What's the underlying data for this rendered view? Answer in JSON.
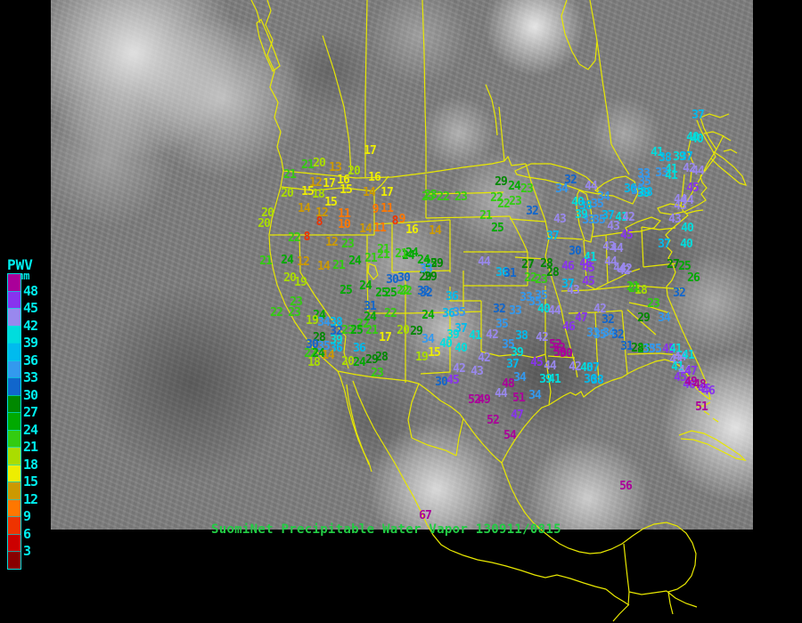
{
  "caption": {
    "text": "SuomiNet Precipitable Water Vapor 130911/0815",
    "color": "#22cc44"
  },
  "legend": {
    "title": "PWV",
    "unit": "mm",
    "text_color": "#00eeee",
    "below_scale_color": "#880000",
    "entries": [
      [
        48,
        "#aa0099"
      ],
      [
        45,
        "#8833ee"
      ],
      [
        42,
        "#9988ee"
      ],
      [
        39,
        "#00dddd"
      ],
      [
        36,
        "#00bbee"
      ],
      [
        33,
        "#3399ee"
      ],
      [
        30,
        "#1166cc"
      ],
      [
        27,
        "#008800"
      ],
      [
        24,
        "#00aa00"
      ],
      [
        21,
        "#33cc11"
      ],
      [
        18,
        "#aadd00"
      ],
      [
        15,
        "#eeee00"
      ],
      [
        12,
        "#cc9900"
      ],
      [
        9,
        "#ff7700"
      ],
      [
        6,
        "#ee3300"
      ],
      [
        3,
        "#cc0000"
      ]
    ]
  },
  "map": {
    "border_color": "#e8e800",
    "borders": [
      "M300,0 L304,12 L298,28 L306,45 L300,62 L308,80 L303,98 L312,115 L308,132 L315,148 L311,165 L316,180 L318,192 L315,210 L310,228 L305,246 L302,264 L303,282 L306,300 L311,320 L320,342 L331,362 L342,378 L352,392 L362,402 L371,410 L379,417",
      "M379,417 L382,424 L387,440 L391,458 L396,476 L402,494 L408,508 L414,520 L417,530",
      "M414,522 L407,505 L400,486 L395,466 L391,448 L389,432",
      "M396,428 L402,444 L410,462 L420,482 L432,502 L444,522 L455,542 L464,558 L472,574 L479,589 L486,601 L495,612 L505,618 L520,624 L536,629 L552,632 L568,636 L585,641 L600,646 L612,649 L625,646 L640,650 L655,655 L668,659 L680,662",
      "M318,192 L360,196 L400,200 L440,199 L480,194 L520,188 L552,184 L566,181 L570,176 L574,186 L590,184",
      "M293,22 L300,38 L308,58 L314,74 L306,80 L298,62 L291,42 L288,26 Z",
      "M282,0 L288,12 L292,26",
      "M362,40 L375,80 L386,120 L392,160 L394,196",
      "M412,0 L411,50 L410,110 L410,170 L410,199",
      "M474,0 L476,60 L477,120 L478,160 L478,193",
      "M560,120 L563,150 L566,181",
      "M545,95 L552,112 L556,132 L558,152",
      "M636,0 L630,18 L634,38 L642,58 L650,72 L660,78 L668,68 L670,46 L666,22 L662,0",
      "M670,46 L676,90 L682,130 L686,162 L696,180 L706,196",
      "M578,192 L596,184 L618,184 L640,190 L658,199 L670,210 L672,218 L655,215 L635,208 L612,202 L592,199 L580,196 Z",
      "M650,214 L658,218 L663,236 L666,256 L663,272 L656,270 L650,252 L647,232 L648,218 Z",
      "M668,214 L678,206 L690,200 L702,198 L712,204 L716,217 L710,229 L700,225 L688,220 L676,219 Z",
      "M702,256 L716,249 L731,244 L741,248 L734,256 L718,260 L705,261 Z",
      "M738,234 L752,229 L764,231 L767,238 L754,241 L741,239 Z",
      "M316,210 L352,214 L385,211 L420,215",
      "M303,264 L340,264 L380,264 L420,264",
      "M420,215 L420,264",
      "M336,264 L337,306 L352,330 L370,356 L388,378 L386,396 L391,414",
      "M412,264 L412,308 L413,352",
      "M420,215 L428,208 L436,198",
      "M420,252 L455,250 L490,248 L505,247",
      "M478,196 L478,245",
      "M478,218 L530,217 L565,216",
      "M478,245 L530,244 L572,243",
      "M440,252 L440,306",
      "M505,247 L505,306",
      "M440,306 L470,305 L505,304",
      "M455,306 L455,352",
      "M520,304 L520,351",
      "M413,352 L455,352 L505,351 L540,350",
      "M455,352 L455,430",
      "M505,351 L505,418 L472,420",
      "M505,338 L540,338",
      "M540,338 L540,395",
      "M505,322 L505,338",
      "M540,395 L560,400 L580,398 L600,402 L612,398",
      "M520,283 L592,283",
      "M520,321 L540,321 L575,321 L592,321",
      "M592,283 L592,321",
      "M612,321 L612,398",
      "M572,246 L612,249",
      "M578,289 L612,291",
      "M590,184 L596,204 L604,226 L612,248 L616,268 L612,288 L618,308 L624,328 L630,348 L634,368 L640,390 L645,408 L648,424",
      "M572,243 L580,258 L587,272 L592,283",
      "M616,267 L640,268 L654,269",
      "M655,270 L657,295 L658,320",
      "M680,264 L681,292 L682,318",
      "M664,266 L680,264 L700,261",
      "M720,255 L721,278 L722,300",
      "M658,320 L668,325 L682,318 L695,312 L706,306 L718,302",
      "M630,327 L660,326 L690,323 L712,321",
      "M638,352 L668,351 L698,349",
      "M668,351 L669,375 L670,400 L672,428",
      "M698,349 L700,372 L702,398 L704,420",
      "M704,398 L740,397 L772,400",
      "M615,400 L645,402",
      "M612,398 L615,420 L618,440 L616,455",
      "M712,321 L740,323 L766,325",
      "M706,340 L730,345 L752,352",
      "M704,348 L720,362 L736,376",
      "M722,300 L740,298 L758,296",
      "M720,255 L740,258 L758,256",
      "M768,196 L766,216 L764,232",
      "M776,192 L774,212",
      "M780,188 L772,170 L776,152",
      "M563,520 L570,507 L578,494 L588,480 L598,468 L608,458 L616,455 L624,450 L632,445 L640,441 L646,444 L652,440 L655,446 L660,442 L668,436 L678,431 L688,427 L698,424 L706,419 L716,414 L726,410 L736,406 L746,404 L756,407 L764,412 L770,419 L776,428 L782,437 L790,444 L797,449",
      "M797,452 L790,456 L782,457",
      "M797,449 L795,437 L790,424 L784,410 L778,397 L772,385 L766,372 L760,358 L754,344 L749,332 L748,322 L754,315 L758,306 L755,297 L750,290 L754,283 L748,277 L752,270 L747,264 L753,258 L760,252 L766,247 L772,242 L768,238 L776,234 L784,230 L792,225 L787,218 L793,211 L788,205 L786,198 L792,191 L797,184 L803,176 L799,168 L794,160 L789,151 L785,143 L782,135",
      "M770,240 L781,237 L789,236",
      "M766,234 L776,218 L786,200 L794,184 L804,168 L812,152",
      "M804,168 L796,156 L790,144 L786,132",
      "M786,132 L796,128 L808,132 L818,128",
      "M790,150 L800,148 L810,152 L820,158",
      "M800,170 L812,178 L824,188 L833,198 L837,208 L830,206 L818,196 L806,186 L798,178",
      "M812,170 L820,168 L827,172",
      "M379,417 L400,421 L420,424 L440,426 L458,428 L470,431 L482,440 L494,450 L506,457 L516,465 L524,476 L532,487 L541,498 L550,508 L557,515 L563,520",
      "M470,431 L462,452 L458,472 L462,492",
      "M520,470 L515,492 L512,512",
      "M462,492 L480,500 L500,506 L512,512",
      "M563,520 L568,534 L574,549 L581,563 L589,576 L598,587 L608,596 L618,604 L628,611 L638,616 L650,620 L662,622 L674,621 L686,617 L698,611 L710,602 L722,594 L734,589 L748,587 L760,591 L770,599 L777,610 L781,622 L780,635 L776,647 L769,656 L760,662 L750,665",
      "M750,665 L752,678 L755,690",
      "M700,611 L702,630 L704,648 L706,665 L705,680",
      "M706,665 L720,668 L734,666 L748,664",
      "M680,662 L690,670 L700,676 L706,680",
      "M705,680 L695,690 L688,698",
      "M748,664 L758,672 L770,678 L782,682",
      "M762,489 L776,484 L790,487 L804,494 L818,503 L830,511 L836,517 L826,515 L810,507 L794,499 L778,494 L764,493",
      "M790,462 L796,466",
      "M800,470 L806,474",
      "M414,296 L421,299 L424,309 L419,314 L413,306 Z"
    ]
  },
  "stations": [
    [
      415,
      170,
      17
    ],
    [
      345,
      186,
      21
    ],
    [
      358,
      184,
      20
    ],
    [
      376,
      189,
      13
    ],
    [
      397,
      193,
      20
    ],
    [
      325,
      197,
      21
    ],
    [
      420,
      200,
      16
    ],
    [
      354,
      206,
      12
    ],
    [
      369,
      207,
      17
    ],
    [
      385,
      203,
      16
    ],
    [
      388,
      214,
      15
    ],
    [
      322,
      218,
      20
    ],
    [
      345,
      216,
      15
    ],
    [
      357,
      219,
      18
    ],
    [
      414,
      217,
      14
    ],
    [
      434,
      217,
      17
    ],
    [
      480,
      222,
      23
    ],
    [
      300,
      240,
      20
    ],
    [
      371,
      228,
      15
    ],
    [
      341,
      235,
      14
    ],
    [
      361,
      240,
      12
    ],
    [
      386,
      241,
      11
    ],
    [
      421,
      236,
      9
    ],
    [
      434,
      235,
      11
    ],
    [
      296,
      252,
      20
    ],
    [
      358,
      250,
      8
    ],
    [
      386,
      253,
      10
    ],
    [
      410,
      258,
      14
    ],
    [
      426,
      257,
      11
    ],
    [
      443,
      249,
      8
    ],
    [
      451,
      247,
      9
    ],
    [
      462,
      259,
      16
    ],
    [
      330,
      268,
      22
    ],
    [
      344,
      267,
      8
    ],
    [
      372,
      273,
      12
    ],
    [
      390,
      275,
      23
    ],
    [
      430,
      281,
      21
    ],
    [
      488,
      260,
      14
    ],
    [
      430,
      287,
      21
    ],
    [
      458,
      288,
      24
    ],
    [
      322,
      293,
      24
    ],
    [
      340,
      295,
      12
    ],
    [
      298,
      294,
      21
    ],
    [
      363,
      300,
      14
    ],
    [
      380,
      299,
      21
    ],
    [
      398,
      294,
      24
    ],
    [
      416,
      291,
      21
    ],
    [
      325,
      313,
      20
    ],
    [
      337,
      318,
      19
    ],
    [
      388,
      327,
      25
    ],
    [
      410,
      322,
      24
    ],
    [
      453,
      313,
      30
    ],
    [
      438,
      330,
      25
    ],
    [
      455,
      328,
      22
    ],
    [
      462,
      285,
      24
    ],
    [
      477,
      312,
      29
    ],
    [
      475,
      328,
      32
    ],
    [
      415,
      345,
      31
    ],
    [
      332,
      340,
      23
    ],
    [
      310,
      352,
      22
    ],
    [
      330,
      352,
      23
    ],
    [
      358,
      355,
      24
    ],
    [
      350,
      361,
      19
    ],
    [
      363,
      363,
      34
    ],
    [
      377,
      363,
      38
    ],
    [
      407,
      365,
      22
    ],
    [
      415,
      357,
      24
    ],
    [
      377,
      373,
      32
    ],
    [
      390,
      372,
      23
    ],
    [
      400,
      372,
      25
    ],
    [
      417,
      372,
      21
    ],
    [
      358,
      380,
      28
    ],
    [
      377,
      383,
      39
    ],
    [
      350,
      388,
      30
    ],
    [
      363,
      390,
      35
    ],
    [
      377,
      392,
      36
    ],
    [
      403,
      392,
      36
    ],
    [
      348,
      398,
      22
    ],
    [
      357,
      398,
      24
    ],
    [
      368,
      400,
      14
    ],
    [
      352,
      408,
      18
    ],
    [
      390,
      407,
      20
    ],
    [
      403,
      408,
      24
    ],
    [
      417,
      405,
      29
    ],
    [
      480,
      355,
      24
    ],
    [
      503,
      353,
      36
    ],
    [
      515,
      352,
      35
    ],
    [
      452,
      372,
      20
    ],
    [
      467,
      373,
      29
    ],
    [
      480,
      382,
      34
    ],
    [
      517,
      370,
      37
    ],
    [
      508,
      377,
      39
    ],
    [
      500,
      387,
      40
    ],
    [
      487,
      397,
      15
    ],
    [
      473,
      402,
      19
    ],
    [
      533,
      378,
      41
    ],
    [
      552,
      377,
      42
    ],
    [
      517,
      392,
      40
    ],
    [
      543,
      403,
      42
    ],
    [
      515,
      415,
      42
    ],
    [
      535,
      418,
      43
    ],
    [
      495,
      430,
      30
    ],
    [
      508,
      428,
      45
    ],
    [
      570,
      432,
      48
    ],
    [
      562,
      443,
      44
    ],
    [
      532,
      450,
      52
    ],
    [
      543,
      450,
      49
    ],
    [
      582,
      448,
      51
    ],
    [
      580,
      467,
      47
    ],
    [
      553,
      473,
      52
    ],
    [
      572,
      490,
      54
    ],
    [
      600,
      445,
      34
    ],
    [
      575,
      410,
      37
    ],
    [
      583,
      425,
      34
    ],
    [
      612,
      427,
      39
    ],
    [
      622,
      427,
      41
    ],
    [
      602,
      408,
      45
    ],
    [
      617,
      412,
      44
    ],
    [
      560,
      348,
      32
    ],
    [
      578,
      350,
      33
    ],
    [
      563,
      365,
      35
    ],
    [
      585,
      378,
      38
    ],
    [
      570,
      388,
      35
    ],
    [
      580,
      397,
      39
    ],
    [
      608,
      380,
      42
    ],
    [
      627,
      392,
      52
    ],
    [
      635,
      398,
      50
    ],
    [
      438,
      353,
      22
    ],
    [
      432,
      380,
      17
    ],
    [
      428,
      402,
      28
    ],
    [
      423,
      420,
      23
    ],
    [
      483,
      220,
      23
    ],
    [
      497,
      222,
      22
    ],
    [
      517,
      222,
      23
    ],
    [
      562,
      205,
      29
    ],
    [
      577,
      210,
      24
    ],
    [
      591,
      213,
      23
    ],
    [
      557,
      223,
      22
    ],
    [
      565,
      230,
      22
    ],
    [
      578,
      227,
      23
    ],
    [
      545,
      243,
      21
    ],
    [
      558,
      257,
      25
    ],
    [
      597,
      238,
      32
    ],
    [
      620,
      266,
      37
    ],
    [
      543,
      295,
      44
    ],
    [
      475,
      293,
      24
    ],
    [
      483,
      297,
      25
    ],
    [
      490,
      297,
      29
    ],
    [
      450,
      286,
      21
    ],
    [
      478,
      303,
      33
    ],
    [
      483,
      312,
      29
    ],
    [
      440,
      315,
      30
    ],
    [
      428,
      330,
      25
    ],
    [
      452,
      327,
      22
    ],
    [
      478,
      330,
      32
    ],
    [
      507,
      334,
      36
    ],
    [
      563,
      307,
      36
    ],
    [
      572,
      308,
      31
    ],
    [
      592,
      298,
      27
    ],
    [
      613,
      297,
      28
    ],
    [
      640,
      203,
      32
    ],
    [
      630,
      213,
      34
    ],
    [
      663,
      210,
      44
    ],
    [
      648,
      228,
      40
    ],
    [
      657,
      232,
      38
    ],
    [
      670,
      230,
      35
    ],
    [
      677,
      222,
      34
    ],
    [
      660,
      248,
      33
    ],
    [
      672,
      248,
      35
    ],
    [
      682,
      243,
      37
    ],
    [
      652,
      242,
      39
    ],
    [
      628,
      247,
      43
    ],
    [
      697,
      245,
      41
    ],
    [
      705,
      245,
      42
    ],
    [
      688,
      255,
      43
    ],
    [
      703,
      265,
      45
    ],
    [
      707,
      213,
      36
    ],
    [
      715,
      215,
      35
    ],
    [
      722,
      218,
      39
    ],
    [
      725,
      217,
      38
    ],
    [
      595,
      313,
      22
    ],
    [
      607,
      315,
      23
    ],
    [
      620,
      307,
      28
    ],
    [
      607,
      333,
      35
    ],
    [
      590,
      335,
      33
    ],
    [
      600,
      340,
      35
    ],
    [
      610,
      348,
      40
    ],
    [
      622,
      350,
      44
    ],
    [
      637,
      300,
      46
    ],
    [
      660,
      317,
      45
    ],
    [
      643,
      327,
      43
    ],
    [
      637,
      320,
      37
    ],
    [
      652,
      358,
      47
    ],
    [
      673,
      348,
      42
    ],
    [
      682,
      360,
      32
    ],
    [
      712,
      325,
      21
    ],
    [
      719,
      327,
      18
    ],
    [
      733,
      342,
      23
    ],
    [
      722,
      358,
      29
    ],
    [
      745,
      358,
      34
    ],
    [
      777,
      155,
      40
    ],
    [
      737,
      172,
      41
    ],
    [
      746,
      178,
      38
    ],
    [
      762,
      177,
      39
    ],
    [
      770,
      177,
      37
    ],
    [
      753,
      191,
      41
    ],
    [
      773,
      190,
      42
    ],
    [
      783,
      193,
      44
    ],
    [
      742,
      195,
      33
    ],
    [
      723,
      205,
      35
    ],
    [
      777,
      212,
      45
    ],
    [
      771,
      226,
      44
    ],
    [
      763,
      232,
      43
    ],
    [
      757,
      247,
      43
    ],
    [
      763,
      225,
      44
    ],
    [
      771,
      257,
      40
    ],
    [
      745,
      275,
      37
    ],
    [
      770,
      275,
      40
    ],
    [
      783,
      130,
      37
    ],
    [
      782,
      157,
      40
    ],
    [
      722,
      196,
      33
    ],
    [
      753,
      198,
      41
    ],
    [
      645,
      283,
      30
    ],
    [
      662,
      290,
      41
    ],
    [
      657,
      297,
      46
    ],
    [
      685,
      295,
      44
    ],
    [
      660,
      302,
      45
    ],
    [
      683,
      278,
      43
    ],
    [
      692,
      280,
      44
    ],
    [
      695,
      302,
      44
    ],
    [
      702,
      303,
      42
    ],
    [
      700,
      305,
      42
    ],
    [
      755,
      298,
      27
    ],
    [
      768,
      300,
      25
    ],
    [
      778,
      313,
      26
    ],
    [
      710,
      323,
      21
    ],
    [
      762,
      330,
      32
    ],
    [
      703,
      390,
      31
    ],
    [
      715,
      392,
      28
    ],
    [
      665,
      375,
      33
    ],
    [
      673,
      377,
      35
    ],
    [
      683,
      375,
      34
    ],
    [
      693,
      377,
      32
    ],
    [
      735,
      393,
      35
    ],
    [
      750,
      393,
      45
    ],
    [
      758,
      393,
      41
    ],
    [
      763,
      402,
      44
    ],
    [
      758,
      405,
      43
    ],
    [
      760,
      413,
      41
    ],
    [
      768,
      417,
      44
    ],
    [
      775,
      418,
      47
    ],
    [
      763,
      425,
      45
    ],
    [
      773,
      433,
      46
    ],
    [
      775,
      430,
      49
    ],
    [
      785,
      433,
      48
    ],
    [
      623,
      388,
      52
    ],
    [
      628,
      397,
      50
    ],
    [
      638,
      368,
      46
    ],
    [
      645,
      413,
      42
    ],
    [
      658,
      414,
      40
    ],
    [
      665,
      414,
      37
    ],
    [
      662,
      427,
      36
    ],
    [
      670,
      428,
      38
    ],
    [
      722,
      393,
      25
    ],
    [
      728,
      393,
      35
    ],
    [
      772,
      400,
      41
    ],
    [
      790,
      438,
      45
    ],
    [
      795,
      440,
      46
    ],
    [
      787,
      458,
      51
    ],
    [
      702,
      547,
      56
    ],
    [
      477,
      580,
      67
    ]
  ]
}
